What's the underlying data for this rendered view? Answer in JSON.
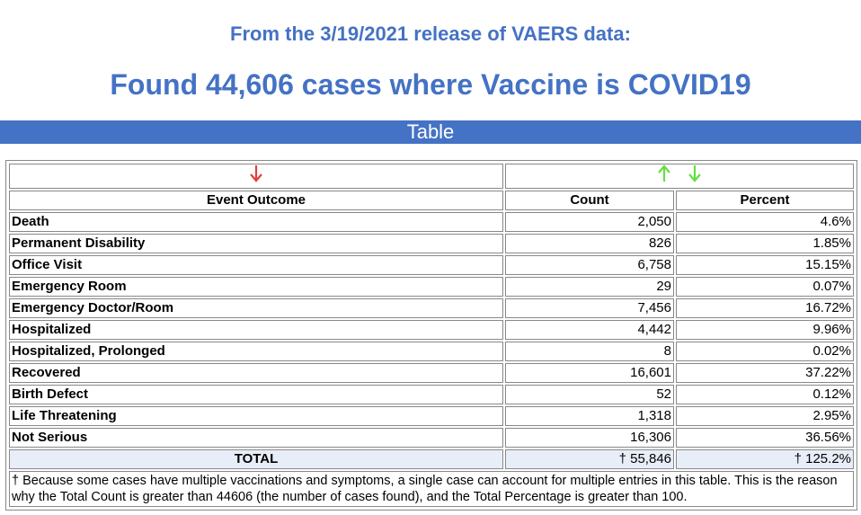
{
  "header": {
    "release_line": "From the 3/19/2021 release of VAERS data:",
    "found_line": "Found 44,606 cases where Vaccine is COVID19"
  },
  "section_bar": {
    "title": "Table"
  },
  "colors": {
    "accent_blue": "#4472c4",
    "sort_arrow_active": "#e0403a",
    "sort_arrow_inactive": "#66dd44",
    "total_row_bg": "#e8eef8"
  },
  "sort_controls": {
    "outcome_arrow_icon": "arrow-down-icon",
    "count_arrow_icons": [
      "arrow-up-icon",
      "arrow-down-icon"
    ]
  },
  "table": {
    "columns": [
      "Event Outcome",
      "Count",
      "Percent"
    ],
    "rows": [
      {
        "outcome": "Death",
        "count": "2,050",
        "percent": "4.6%"
      },
      {
        "outcome": "Permanent Disability",
        "count": "826",
        "percent": "1.85%"
      },
      {
        "outcome": "Office Visit",
        "count": "6,758",
        "percent": "15.15%"
      },
      {
        "outcome": "Emergency Room",
        "count": "29",
        "percent": "0.07%"
      },
      {
        "outcome": "Emergency Doctor/Room",
        "count": "7,456",
        "percent": "16.72%"
      },
      {
        "outcome": "Hospitalized",
        "count": "4,442",
        "percent": "9.96%"
      },
      {
        "outcome": "Hospitalized, Prolonged",
        "count": "8",
        "percent": "0.02%"
      },
      {
        "outcome": "Recovered",
        "count": "16,601",
        "percent": "37.22%"
      },
      {
        "outcome": "Birth Defect",
        "count": "52",
        "percent": "0.12%"
      },
      {
        "outcome": "Life Threatening",
        "count": "1,318",
        "percent": "2.95%"
      },
      {
        "outcome": "Not Serious",
        "count": "16,306",
        "percent": "36.56%"
      }
    ],
    "total": {
      "label": "TOTAL",
      "count": "† 55,846",
      "percent": "† 125.2%"
    },
    "footnote": "† Because some cases have multiple vaccinations and symptoms, a single case can account for multiple entries in this table. This is the reason why the Total Count is greater than 44606 (the number of cases found), and the Total Percentage is greater than 100."
  }
}
